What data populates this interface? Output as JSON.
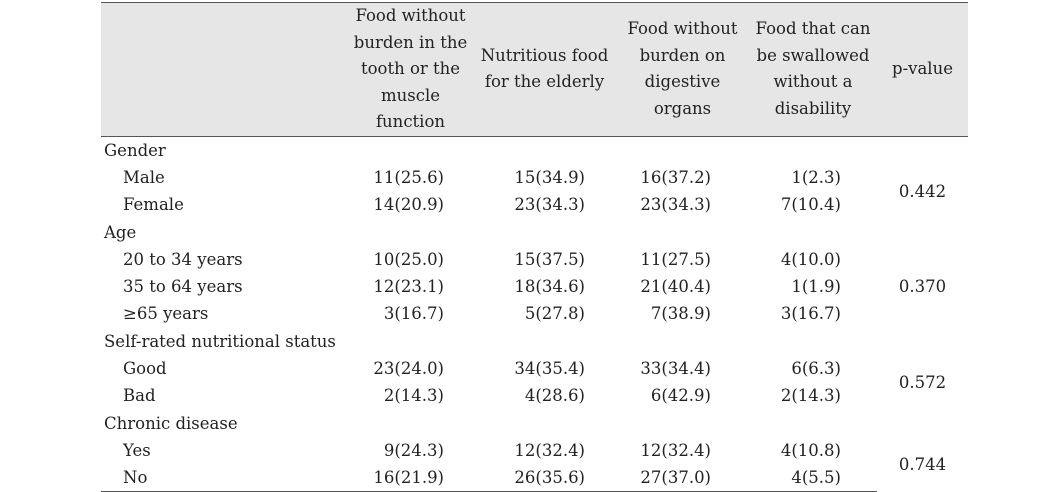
{
  "headers": [
    "",
    "Food without burden in the tooth or the muscle function",
    "Nutritious food for the elderly",
    "Food without burden on digestive organs",
    "Food that can be swallowed without a disability",
    "p-value"
  ],
  "groups": [
    {
      "label": "Gender",
      "p_value": "0.442",
      "rows": [
        {
          "label": "Male",
          "c1": "11(25.6)",
          "c2": "15(34.9)",
          "c3": "16(37.2)",
          "c4": "1(2.3)"
        },
        {
          "label": "Female",
          "c1": "14(20.9)",
          "c2": "23(34.3)",
          "c3": "23(34.3)",
          "c4": "7(10.4)"
        }
      ]
    },
    {
      "label": "Age",
      "p_value": "0.370",
      "rows": [
        {
          "label": "20 to 34 years",
          "c1": "10(25.0)",
          "c2": "15(37.5)",
          "c3": "11(27.5)",
          "c4": "4(10.0)"
        },
        {
          "label": "35 to 64 years",
          "c1": "12(23.1)",
          "c2": "18(34.6)",
          "c3": "21(40.4)",
          "c4": "1(1.9)"
        },
        {
          "label": "≥65 years",
          "c1": "3(16.7)",
          "c2": "5(27.8)",
          "c3": "7(38.9)",
          "c4": "3(16.7)"
        }
      ]
    },
    {
      "label": "Self-rated nutritional status",
      "p_value": "0.572",
      "rows": [
        {
          "label": "Good",
          "c1": "23(24.0)",
          "c2": "34(35.4)",
          "c3": "33(34.4)",
          "c4": "6(6.3)"
        },
        {
          "label": "Bad",
          "c1": "2(14.3)",
          "c2": "4(28.6)",
          "c3": "6(42.9)",
          "c4": "2(14.3)"
        }
      ]
    },
    {
      "label": "Chronic disease",
      "p_value": "0.744",
      "rows": [
        {
          "label": "Yes",
          "c1": "9(24.3)",
          "c2": "12(32.4)",
          "c3": "12(32.4)",
          "c4": "4(10.8)"
        },
        {
          "label": "No",
          "c1": "16(21.9)",
          "c2": "26(35.6)",
          "c3": "27(37.0)",
          "c4": "4(5.5)"
        }
      ]
    }
  ]
}
